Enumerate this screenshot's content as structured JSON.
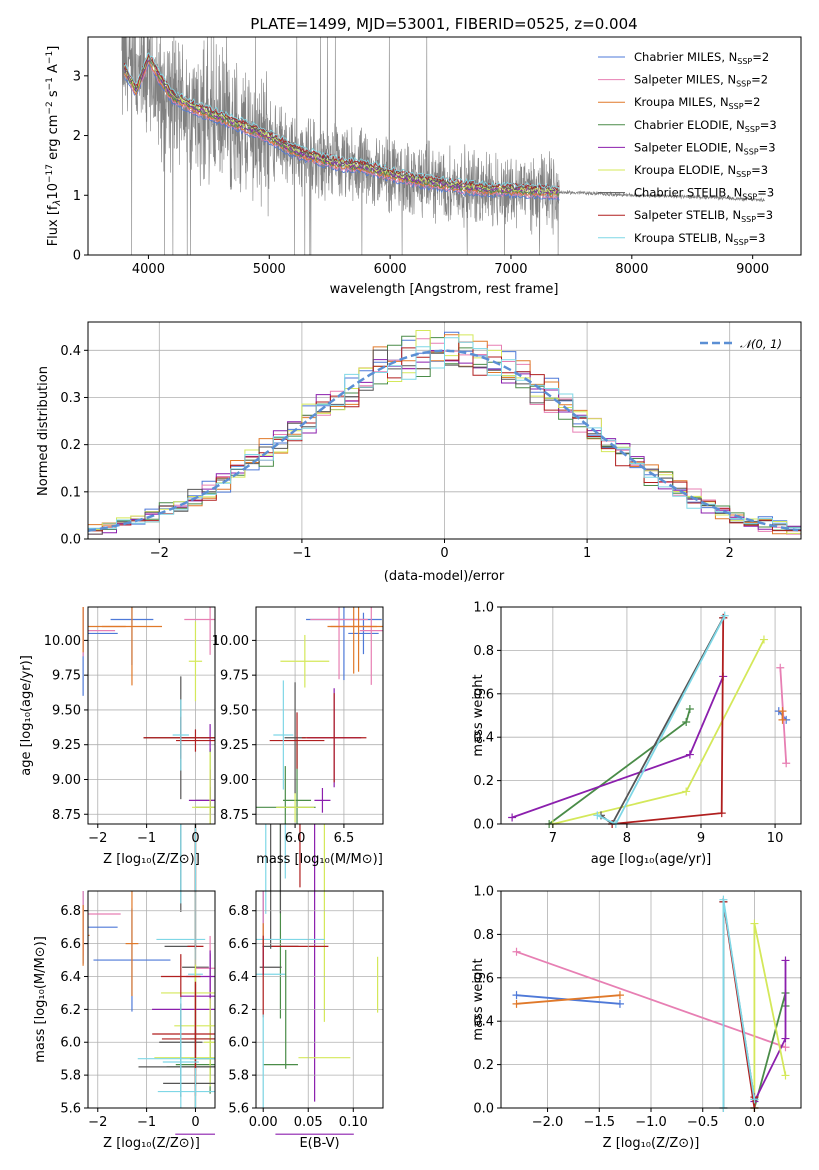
{
  "colors": {
    "chabrier_miles": "#4e79d8",
    "salpeter_miles": "#e77fb3",
    "kroupa_miles": "#e0792a",
    "chabrier_elodie": "#4a8c48",
    "salpeter_elodie": "#8b1fad",
    "kroupa_elodie": "#d4e85a",
    "chabrier_stelib": "#555555",
    "salpeter_stelib": "#b01f1f",
    "kroupa_stelib": "#7fd7e6",
    "data": "#808080",
    "normal": "#5b8fd4"
  },
  "chart_data": [
    {
      "id": "spectrum",
      "type": "line",
      "title": "PLATE=1499, MJD=53001, FIBERID=0525, z=0.004",
      "xlabel": "wavelength [Angstrom, rest frame]",
      "ylabel": "Flux [f_λ 10^-17 erg cm^-2 s^-1 A^-1]",
      "xlim": [
        3500,
        9400
      ],
      "ylim": [
        0,
        3.65
      ],
      "xticks": [
        "4000",
        "5000",
        "6000",
        "7000",
        "8000",
        "9000"
      ],
      "yticks": [
        "0",
        "1",
        "2",
        "3"
      ],
      "legend_position": "upper right",
      "legend": [
        {
          "label": "Chabrier MILES, N_SSP=2",
          "color_key": "chabrier_miles"
        },
        {
          "label": "Salpeter MILES, N_SSP=2",
          "color_key": "salpeter_miles"
        },
        {
          "label": "Kroupa MILES, N_SSP=2",
          "color_key": "kroupa_miles"
        },
        {
          "label": "Chabrier ELODIE, N_SSP=3",
          "color_key": "chabrier_elodie"
        },
        {
          "label": "Salpeter ELODIE, N_SSP=3",
          "color_key": "salpeter_elodie"
        },
        {
          "label": "Kroupa ELODIE, N_SSP=3",
          "color_key": "kroupa_elodie"
        },
        {
          "label": "Chabrier STELIB, N_SSP=3",
          "color_key": "chabrier_stelib"
        },
        {
          "label": "Salpeter STELIB, N_SSP=3",
          "color_key": "salpeter_stelib"
        },
        {
          "label": "Kroupa STELIB, N_SSP=3",
          "color_key": "kroupa_stelib"
        }
      ],
      "observed_continuum": {
        "x": [
          3780,
          3900,
          4000,
          4100,
          4200,
          4400,
          4600,
          4800,
          5000,
          5200,
          5400,
          5600,
          5800,
          6000,
          6200,
          6400,
          6600,
          6800,
          7000,
          7200,
          7400,
          7600,
          7800,
          8000,
          8200,
          8400,
          8600,
          8800,
          9000,
          9100
        ],
        "y": [
          3.2,
          2.9,
          3.0,
          2.7,
          2.6,
          2.35,
          2.25,
          2.1,
          1.95,
          1.75,
          1.6,
          1.5,
          1.45,
          1.35,
          1.25,
          1.2,
          1.15,
          1.1,
          1.1,
          1.08,
          1.05,
          1.04,
          1.02,
          1.0,
          0.99,
          0.98,
          0.97,
          0.95,
          0.93,
          0.92
        ]
      },
      "model_continuum": {
        "x": [
          3800,
          3900,
          4000,
          4100,
          4200,
          4400,
          4600,
          4800,
          5000,
          5200,
          5400,
          5600,
          5800,
          6000,
          6200,
          6400,
          6600,
          6800,
          7000,
          7200,
          7400
        ],
        "y": [
          3.1,
          2.75,
          3.3,
          2.95,
          2.65,
          2.45,
          2.3,
          2.15,
          1.98,
          1.75,
          1.62,
          1.52,
          1.47,
          1.36,
          1.26,
          1.2,
          1.14,
          1.1,
          1.09,
          1.07,
          1.05
        ]
      }
    },
    {
      "id": "residuals",
      "type": "line",
      "xlabel": "(data-model)/error",
      "ylabel": "Normed distribution",
      "xlim": [
        -2.5,
        2.5
      ],
      "ylim": [
        0,
        0.46
      ],
      "xticks": [
        "−2",
        "−1",
        "0",
        "1",
        "2"
      ],
      "yticks": [
        "0.0",
        "0.1",
        "0.2",
        "0.3",
        "0.4"
      ],
      "grid": true,
      "legend_position": "upper right",
      "legend": [
        {
          "label": "𝒩(0, 1)",
          "color_key": "normal"
        }
      ],
      "bin_width": 0.1
    },
    {
      "id": "age_vs_Z",
      "type": "scatter",
      "xlabel": "Z [log10(Z/Z_⊙)]",
      "ylabel": "age  [log10(age/yr)]",
      "xlim": [
        -2.2,
        0.4
      ],
      "ylim": [
        8.68,
        10.24
      ],
      "xticks": [
        "−2",
        "−1",
        "0"
      ],
      "yticks": [
        "8.75",
        "9.00",
        "9.25",
        "9.50",
        "9.75",
        "10.00"
      ],
      "grid": true
    },
    {
      "id": "age_vs_mass",
      "type": "scatter",
      "xlabel": "mass [log10(M/M_⊙)]",
      "ylabel": "",
      "xlim": [
        5.6,
        6.9
      ],
      "ylim": [
        8.68,
        10.24
      ],
      "xticks": [
        "6.0",
        "6.5"
      ],
      "yticks": [
        "8.75",
        "9.00",
        "9.25",
        "9.50",
        "9.75",
        "10.00"
      ],
      "grid": true
    },
    {
      "id": "weight_vs_age",
      "type": "line",
      "xlabel": "age  [log10(age/yr)]",
      "ylabel": "mass weight",
      "xlim": [
        6.3,
        10.35
      ],
      "ylim": [
        0,
        1.0
      ],
      "xticks": [
        "7",
        "8",
        "9",
        "10"
      ],
      "yticks": [
        "0.0",
        "0.2",
        "0.4",
        "0.6",
        "0.8",
        "1.0"
      ],
      "grid": true
    },
    {
      "id": "mass_vs_Z",
      "type": "scatter",
      "xlabel": "Z [log10(Z/Z_⊙)]",
      "ylabel": "mass [log10(M/M_⊙)]",
      "xlim": [
        -2.2,
        0.4
      ],
      "ylim": [
        5.6,
        6.92
      ],
      "xticks": [
        "−2",
        "−1",
        "0"
      ],
      "yticks": [
        "5.6",
        "5.8",
        "6.0",
        "6.2",
        "6.4",
        "6.6",
        "6.8"
      ],
      "grid": true
    },
    {
      "id": "mass_vs_ebv",
      "type": "scatter",
      "xlabel": "E(B-V)",
      "ylabel": "",
      "xlim": [
        -0.008,
        0.133
      ],
      "ylim": [
        5.6,
        6.92
      ],
      "xticks": [
        "0.00",
        "0.05",
        "0.10"
      ],
      "yticks": [
        "5.6",
        "5.8",
        "6.0",
        "6.2",
        "6.4",
        "6.6",
        "6.8"
      ],
      "grid": true
    },
    {
      "id": "weight_vs_Z",
      "type": "line",
      "xlabel": "Z [log10(Z/Z_⊙)]",
      "ylabel": "mass weight",
      "xlim": [
        -2.45,
        0.45
      ],
      "ylim": [
        0,
        1.0
      ],
      "xticks": [
        "−2.0",
        "−1.5",
        "−1.0",
        "−0.5",
        "0.0"
      ],
      "yticks": [
        "0.0",
        "0.2",
        "0.4",
        "0.6",
        "0.8",
        "1.0"
      ],
      "grid": true
    }
  ],
  "models": [
    {
      "key": "chabrier_miles",
      "ssp": [
        {
          "age": 10.05,
          "Z": -2.3,
          "mass": 6.7,
          "w": 0.52
        },
        {
          "age": 10.15,
          "Z": -1.3,
          "mass": 6.5,
          "w": 0.48
        }
      ]
    },
    {
      "key": "salpeter_miles",
      "ssp": [
        {
          "age": 10.07,
          "Z": -2.3,
          "mass": 6.78,
          "w": 0.72
        },
        {
          "age": 10.15,
          "Z": 0.3,
          "mass": 6.45,
          "w": 0.28
        }
      ]
    },
    {
      "key": "kroupa_miles",
      "ssp": [
        {
          "age": 10.1,
          "Z": -2.3,
          "mass": 6.65,
          "w": 0.48
        },
        {
          "age": 10.1,
          "Z": -1.3,
          "mass": 6.6,
          "w": 0.52
        }
      ]
    },
    {
      "key": "chabrier_elodie",
      "ssp": [
        {
          "age": 6.95,
          "Z": 0.0,
          "mass": 5.85,
          "w": 0.0
        },
        {
          "age": 8.85,
          "Z": 0.3,
          "mass": 6.02,
          "w": 0.53
        },
        {
          "age": 8.8,
          "Z": 0.3,
          "mass": 5.9,
          "w": 0.47
        }
      ]
    },
    {
      "key": "salpeter_elodie",
      "ssp": [
        {
          "age": 6.45,
          "Z": 0.0,
          "mass": 6.2,
          "w": 0.03
        },
        {
          "age": 8.85,
          "Z": 0.3,
          "mass": 6.28,
          "w": 0.32
        },
        {
          "age": 9.3,
          "Z": 0.3,
          "mass": 6.4,
          "w": 0.68
        }
      ]
    },
    {
      "key": "kroupa_elodie",
      "ssp": [
        {
          "age": 7.0,
          "Z": 0.0,
          "mass": 6.3,
          "w": 0.0
        },
        {
          "age": 8.8,
          "Z": 0.3,
          "mass": 6.0,
          "w": 0.15
        },
        {
          "age": 9.85,
          "Z": 0.0,
          "mass": 6.1,
          "w": 0.85
        }
      ]
    },
    {
      "key": "chabrier_stelib",
      "ssp": [
        {
          "age": 7.65,
          "Z": 0.0,
          "mass": 5.75,
          "w": 0.04
        },
        {
          "age": 7.8,
          "Z": -0.3,
          "mass": 5.85,
          "w": 0.0
        },
        {
          "age": 9.3,
          "Z": -0.3,
          "mass": 6.0,
          "w": 0.95
        }
      ]
    },
    {
      "key": "salpeter_stelib",
      "ssp": [
        {
          "age": 7.8,
          "Z": 0.0,
          "mass": 6.05,
          "w": 0.0
        },
        {
          "age": 9.3,
          "Z": -0.3,
          "mass": 6.4,
          "w": 0.95
        },
        {
          "age": 9.28,
          "Z": 0.0,
          "mass": 6.02,
          "w": 0.05
        }
      ]
    },
    {
      "key": "kroupa_stelib",
      "ssp": [
        {
          "age": 7.6,
          "Z": 0.0,
          "mass": 5.7,
          "w": 0.04
        },
        {
          "age": 7.85,
          "Z": -0.3,
          "mass": 5.9,
          "w": 0.0
        },
        {
          "age": 9.32,
          "Z": -0.3,
          "mass": 5.88,
          "w": 0.96
        }
      ]
    }
  ],
  "ebv_values": [
    {
      "key": "chabrier_miles",
      "ebv": 0.0,
      "mass": 6.7
    },
    {
      "key": "salpeter_miles",
      "ebv": 0.0,
      "mass": 6.78
    },
    {
      "key": "kroupa_miles",
      "ebv": 0.0,
      "mass": 6.65
    },
    {
      "key": "salpeter_elodie",
      "ebv": 0.0,
      "mass": 6.5
    },
    {
      "key": "salpeter_stelib",
      "ebv": 0.0,
      "mass": 6.4
    },
    {
      "key": "chabrier_elodie",
      "ebv": 0.025,
      "mass": 6.2
    },
    {
      "key": "kroupa_elodie",
      "ebv": 0.127,
      "mass": 6.35
    },
    {
      "key": "kroupa_stelib",
      "ebv": 0.0,
      "mass": 5.8
    }
  ]
}
